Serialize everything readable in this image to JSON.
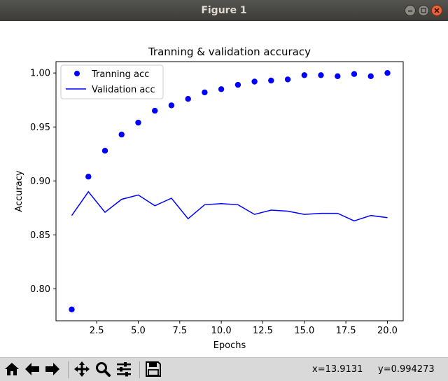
{
  "window": {
    "title": "Figure 1"
  },
  "chart_data": {
    "type": "scatter",
    "title": "Tranning & validation accuracy",
    "xlabel": "Epochs",
    "ylabel": "Accuracy",
    "xlim": [
      0.05,
      20.95
    ],
    "ylim": [
      0.7705,
      1.0105
    ],
    "xticks": [
      2.5,
      5.0,
      7.5,
      10.0,
      12.5,
      15.0,
      17.5,
      20.0
    ],
    "xtick_labels": [
      "2.5",
      "5.0",
      "7.5",
      "10.0",
      "12.5",
      "15.0",
      "17.5",
      "20.0"
    ],
    "yticks": [
      0.8,
      0.85,
      0.9,
      0.95,
      1.0
    ],
    "ytick_labels": [
      "0.80",
      "0.85",
      "0.90",
      "0.95",
      "1.00"
    ],
    "grid": false,
    "legend_position": "upper-left",
    "x": [
      1,
      2,
      3,
      4,
      5,
      6,
      7,
      8,
      9,
      10,
      11,
      12,
      13,
      14,
      15,
      16,
      17,
      18,
      19,
      20
    ],
    "series": [
      {
        "name": "Tranning acc",
        "style": "points",
        "color": "#0000ff",
        "values": [
          0.781,
          0.904,
          0.928,
          0.943,
          0.954,
          0.965,
          0.97,
          0.976,
          0.982,
          0.985,
          0.989,
          0.992,
          0.993,
          0.994,
          0.998,
          0.998,
          0.997,
          0.999,
          0.997,
          1.0
        ]
      },
      {
        "name": "Validation acc",
        "style": "line",
        "color": "#0000ff",
        "values": [
          0.868,
          0.89,
          0.871,
          0.883,
          0.887,
          0.877,
          0.884,
          0.865,
          0.878,
          0.879,
          0.878,
          0.869,
          0.873,
          0.872,
          0.869,
          0.87,
          0.87,
          0.863,
          0.868,
          0.866
        ]
      }
    ]
  },
  "toolbar": {
    "x_readout": "x=13.9131",
    "y_readout": "y=0.994273"
  }
}
